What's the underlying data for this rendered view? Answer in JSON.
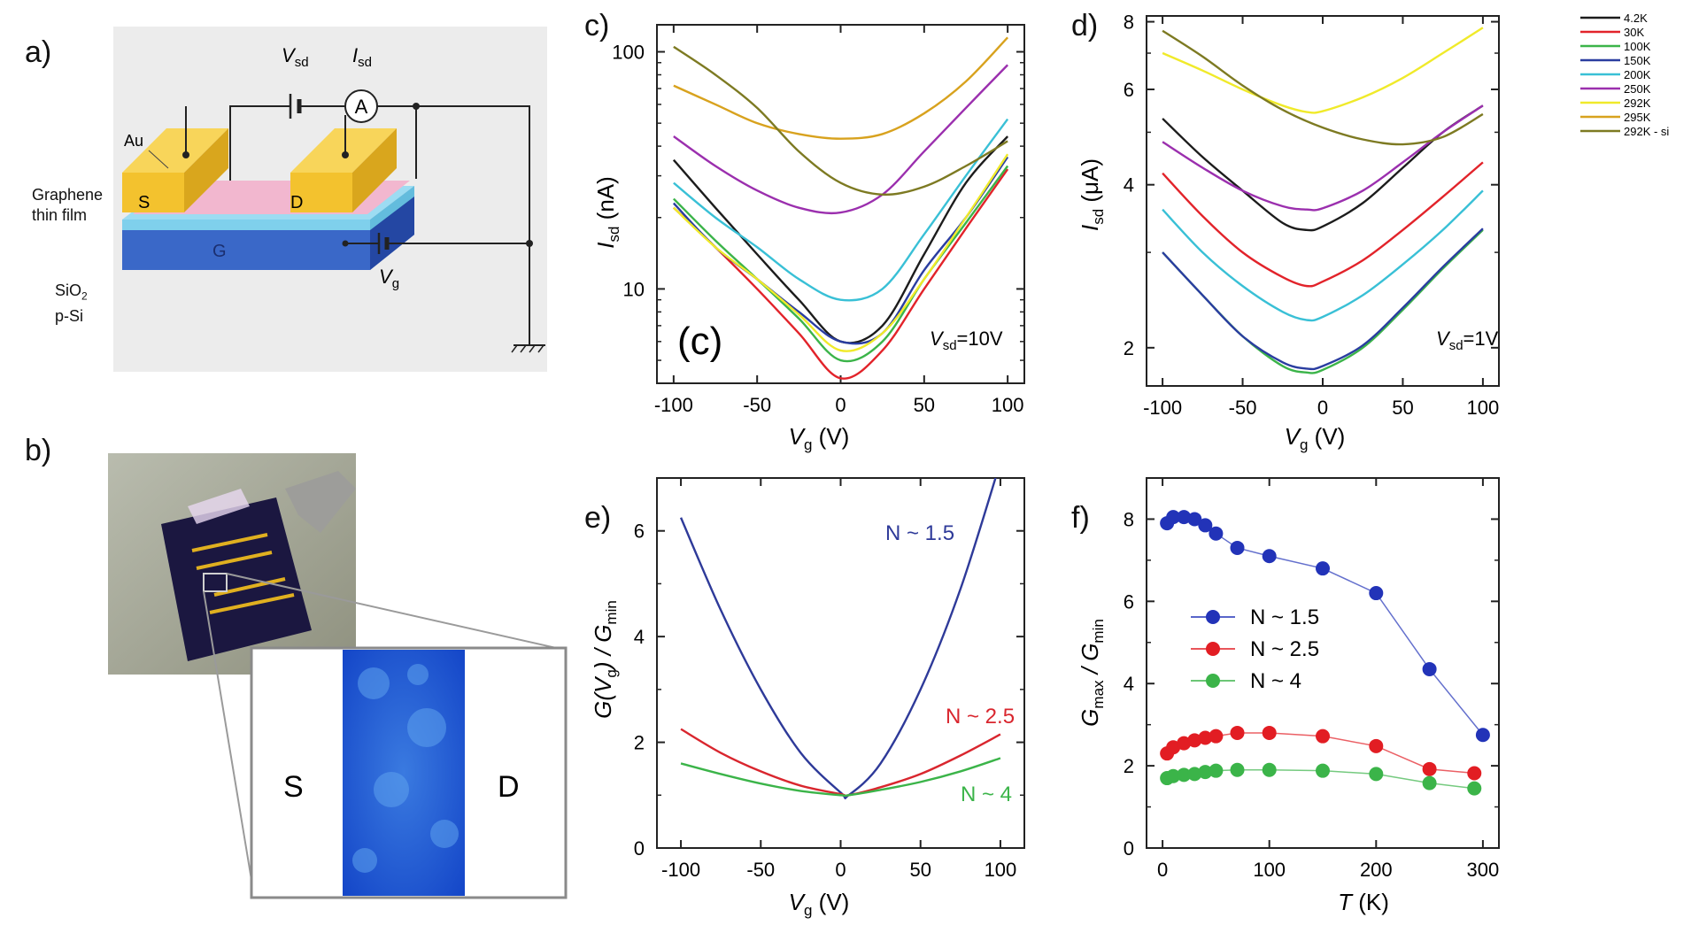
{
  "panels": {
    "a": {
      "letter": "a)",
      "labels": {
        "vsd": "V",
        "vsd_sub": "sd",
        "isd": "I",
        "isd_sub": "sd",
        "ammeter": "A",
        "au": "Au",
        "graphene_1": "Graphene",
        "graphene_2": "thin film",
        "s": "S",
        "d": "D",
        "g": "G",
        "sio2": "SiO",
        "sio2_sub": "2",
        "psi": "p-Si",
        "vg": "V",
        "vg_sub": "g"
      },
      "colors": {
        "gold": "#f3c22e",
        "pink": "#f2b7cf",
        "cyan": "#7fd0ec",
        "blue": "#3a68c8",
        "bg": "#ececec"
      }
    },
    "b": {
      "letter": "b)",
      "labels": {
        "s": "S",
        "d": "D"
      }
    },
    "c": {
      "letter": "c)",
      "inner_label": "(c)",
      "annotation_prefix": "V",
      "annotation_sub": "sd",
      "annotation_suffix": "=10V",
      "xlabel": "V",
      "xlabel_sub": "g",
      "xlabel_unit": " (V)",
      "ylabel": "I",
      "ylabel_sub": "sd",
      "ylabel_unit": " (nA)",
      "xticks": [
        "-100",
        "-50",
        "0",
        "50",
        "100"
      ],
      "yticks": [
        "10",
        "100"
      ]
    },
    "d": {
      "letter": "d)",
      "annotation_prefix": "V",
      "annotation_sub": "sd",
      "annotation_suffix": "=1V",
      "xlabel": "V",
      "xlabel_sub": "g",
      "xlabel_unit": " (V)",
      "ylabel": "I",
      "ylabel_sub": "sd",
      "ylabel_unit": " (μA)",
      "xticks": [
        "-100",
        "-50",
        "0",
        "50",
        "100"
      ],
      "yticks": [
        "2",
        "4",
        "6",
        "8"
      ]
    },
    "e": {
      "letter": "e)",
      "xlabel": "V",
      "xlabel_sub": "g",
      "xlabel_unit": " (V)",
      "ylabel_1": "G(V",
      "ylabel_1_sub": "g",
      "ylabel_2": ") / G",
      "ylabel_2_sub": "min",
      "xticks": [
        "-100",
        "-50",
        "0",
        "50",
        "100"
      ],
      "yticks": [
        "0",
        "2",
        "4",
        "6"
      ]
    },
    "f": {
      "letter": "f)",
      "xlabel": "T",
      "xlabel_unit": " (K)",
      "ylabel_1": "G",
      "ylabel_1_sub": "max",
      "ylabel_2": " / G",
      "ylabel_2_sub": "min",
      "xticks": [
        "0",
        "100",
        "200",
        "300"
      ],
      "yticks": [
        "0",
        "2",
        "4",
        "6",
        "8"
      ]
    }
  },
  "legend": {
    "items": [
      {
        "label": "4.2K",
        "color": "#1c1c1c"
      },
      {
        "label": "30K",
        "color": "#e2232a"
      },
      {
        "label": "100K",
        "color": "#3bb449"
      },
      {
        "label": "150K",
        "color": "#2a3da0"
      },
      {
        "label": "200K",
        "color": "#39c0d6"
      },
      {
        "label": "250K",
        "color": "#9b2fae"
      },
      {
        "label": "292K",
        "color": "#f0ea2a"
      },
      {
        "label": "295K",
        "color": "#d8a21e"
      },
      {
        "label": "292K - si",
        "color": "#7d7a22"
      }
    ]
  },
  "chart_data": [
    {
      "panel": "c",
      "type": "line",
      "ylog": true,
      "xlim": [
        -110,
        110
      ],
      "ylim": [
        4,
        130
      ],
      "series": [
        {
          "color": "#1c1c1c",
          "x": [
            -100,
            -75,
            -50,
            -25,
            0,
            25,
            50,
            75,
            100
          ],
          "y": [
            35,
            22,
            14,
            9,
            6,
            7,
            14,
            28,
            44
          ]
        },
        {
          "color": "#e2232a",
          "x": [
            -100,
            -75,
            -50,
            -25,
            0,
            25,
            50,
            75,
            100
          ],
          "y": [
            22,
            15,
            10,
            6.5,
            4.2,
            5.5,
            10,
            18,
            32
          ]
        },
        {
          "color": "#3bb449",
          "x": [
            -100,
            -75,
            -50,
            -25,
            0,
            25,
            50,
            75,
            100
          ],
          "y": [
            24,
            16,
            11,
            7.5,
            5,
            6,
            11,
            19,
            33
          ]
        },
        {
          "color": "#2a3da0",
          "x": [
            -100,
            -75,
            -50,
            -25,
            0,
            25,
            50,
            75,
            100
          ],
          "y": [
            23,
            15,
            11,
            8,
            6,
            6.5,
            12,
            20,
            36
          ]
        },
        {
          "color": "#39c0d6",
          "x": [
            -100,
            -75,
            -50,
            -25,
            0,
            25,
            50,
            75,
            100
          ],
          "y": [
            28,
            20,
            15,
            11,
            9,
            10,
            17,
            30,
            52
          ]
        },
        {
          "color": "#9b2fae",
          "x": [
            -100,
            -75,
            -50,
            -25,
            0,
            25,
            50,
            75,
            100
          ],
          "y": [
            44,
            33,
            26,
            22,
            21,
            25,
            38,
            58,
            88
          ]
        },
        {
          "color": "#f0ea2a",
          "x": [
            -100,
            -75,
            -50,
            -25,
            0,
            25,
            50,
            75,
            100
          ],
          "y": [
            22,
            15,
            11,
            7.8,
            5.5,
            6.5,
            11,
            20,
            37
          ]
        },
        {
          "color": "#d8a21e",
          "x": [
            -100,
            -75,
            -50,
            -25,
            0,
            25,
            50,
            75,
            100
          ],
          "y": [
            72,
            60,
            50,
            45,
            43,
            45,
            55,
            75,
            115
          ]
        },
        {
          "color": "#7d7a22",
          "x": [
            -100,
            -75,
            -50,
            -25,
            0,
            25,
            50,
            75,
            100
          ],
          "y": [
            105,
            80,
            58,
            38,
            28,
            25,
            27,
            33,
            42
          ]
        }
      ]
    },
    {
      "panel": "d",
      "type": "line",
      "ylog": true,
      "xlim": [
        -110,
        110
      ],
      "ylim": [
        1.7,
        8.2
      ],
      "series": [
        {
          "color": "#1c1c1c",
          "x": [
            -100,
            -75,
            -50,
            -25,
            -10,
            0,
            25,
            50,
            75,
            100
          ],
          "y": [
            5.3,
            4.5,
            3.9,
            3.4,
            3.3,
            3.35,
            3.7,
            4.3,
            5.0,
            5.6
          ]
        },
        {
          "color": "#e2232a",
          "x": [
            -100,
            -75,
            -50,
            -25,
            -10,
            0,
            25,
            50,
            75,
            100
          ],
          "y": [
            4.2,
            3.5,
            3.0,
            2.7,
            2.6,
            2.65,
            2.9,
            3.3,
            3.8,
            4.4
          ]
        },
        {
          "color": "#3bb449",
          "x": [
            -100,
            -75,
            -50,
            -25,
            -10,
            0,
            25,
            50,
            75,
            100
          ],
          "y": [
            3.0,
            2.5,
            2.1,
            1.85,
            1.8,
            1.82,
            2.0,
            2.35,
            2.8,
            3.3
          ]
        },
        {
          "color": "#2a3da0",
          "x": [
            -100,
            -75,
            -50,
            -25,
            -10,
            0,
            25,
            50,
            75,
            100
          ],
          "y": [
            3.0,
            2.5,
            2.1,
            1.88,
            1.83,
            1.85,
            2.02,
            2.37,
            2.82,
            3.32
          ]
        },
        {
          "color": "#39c0d6",
          "x": [
            -100,
            -75,
            -50,
            -25,
            -10,
            0,
            25,
            50,
            75,
            100
          ],
          "y": [
            3.6,
            3.0,
            2.6,
            2.33,
            2.25,
            2.28,
            2.5,
            2.85,
            3.3,
            3.9
          ]
        },
        {
          "color": "#9b2fae",
          "x": [
            -100,
            -75,
            -50,
            -25,
            -10,
            0,
            25,
            50,
            75,
            100
          ],
          "y": [
            4.8,
            4.3,
            3.9,
            3.65,
            3.6,
            3.62,
            3.9,
            4.4,
            5.0,
            5.6
          ]
        },
        {
          "color": "#f0ea2a",
          "x": [
            -100,
            -75,
            -50,
            -25,
            -10,
            0,
            25,
            50,
            75,
            100
          ],
          "y": [
            7.0,
            6.5,
            6.0,
            5.6,
            5.45,
            5.47,
            5.8,
            6.3,
            7.0,
            7.8
          ]
        },
        {
          "color": "#7d7a22",
          "x": [
            -100,
            -75,
            -50,
            -25,
            0,
            25,
            50,
            75,
            100
          ],
          "y": [
            7.7,
            6.9,
            6.1,
            5.5,
            5.1,
            4.85,
            4.75,
            4.9,
            5.4
          ]
        }
      ]
    },
    {
      "panel": "e",
      "type": "line",
      "xlim": [
        -115,
        115
      ],
      "ylim": [
        0,
        7
      ],
      "series": [
        {
          "name": "N ~ 1.5",
          "color": "#2e3a99",
          "x": [
            -100,
            -75,
            -50,
            -25,
            0,
            5,
            25,
            50,
            75,
            100
          ],
          "y": [
            6.25,
            4.5,
            3.0,
            1.8,
            1.05,
            1.0,
            1.6,
            3.0,
            4.9,
            7.3
          ]
        },
        {
          "name": "N ~ 2.5",
          "color": "#d9262e",
          "x": [
            -100,
            -75,
            -50,
            -25,
            0,
            5,
            25,
            50,
            75,
            100
          ],
          "y": [
            2.25,
            1.8,
            1.45,
            1.18,
            1.02,
            1.0,
            1.15,
            1.4,
            1.75,
            2.15
          ]
        },
        {
          "name": "N ~ 4",
          "color": "#3bb449",
          "x": [
            -100,
            -75,
            -50,
            -25,
            0,
            5,
            25,
            50,
            75,
            100
          ],
          "y": [
            1.6,
            1.4,
            1.22,
            1.08,
            1.0,
            1.0,
            1.1,
            1.25,
            1.45,
            1.7
          ]
        }
      ]
    },
    {
      "panel": "f",
      "type": "scatter",
      "xlim": [
        -15,
        315
      ],
      "ylim": [
        0,
        9
      ],
      "series": [
        {
          "name": "N ~ 1.5",
          "color": "#2233b8",
          "x": [
            4.2,
            10,
            20,
            30,
            40,
            50,
            70,
            100,
            150,
            200,
            250,
            300
          ],
          "y": [
            7.9,
            8.05,
            8.05,
            8.0,
            7.85,
            7.65,
            7.3,
            7.1,
            6.8,
            6.2,
            4.35,
            2.75
          ]
        },
        {
          "name": "N ~ 2.5",
          "color": "#e21d23",
          "x": [
            4.2,
            10,
            20,
            30,
            40,
            50,
            70,
            100,
            150,
            200,
            250,
            292
          ],
          "y": [
            2.3,
            2.45,
            2.55,
            2.62,
            2.68,
            2.72,
            2.8,
            2.8,
            2.72,
            2.48,
            1.92,
            1.82
          ]
        },
        {
          "name": "N ~ 4",
          "color": "#3bb449",
          "x": [
            4.2,
            10,
            20,
            30,
            40,
            50,
            70,
            100,
            150,
            200,
            250,
            292
          ],
          "y": [
            1.7,
            1.75,
            1.78,
            1.8,
            1.85,
            1.88,
            1.9,
            1.9,
            1.88,
            1.8,
            1.58,
            1.45
          ]
        }
      ]
    }
  ]
}
